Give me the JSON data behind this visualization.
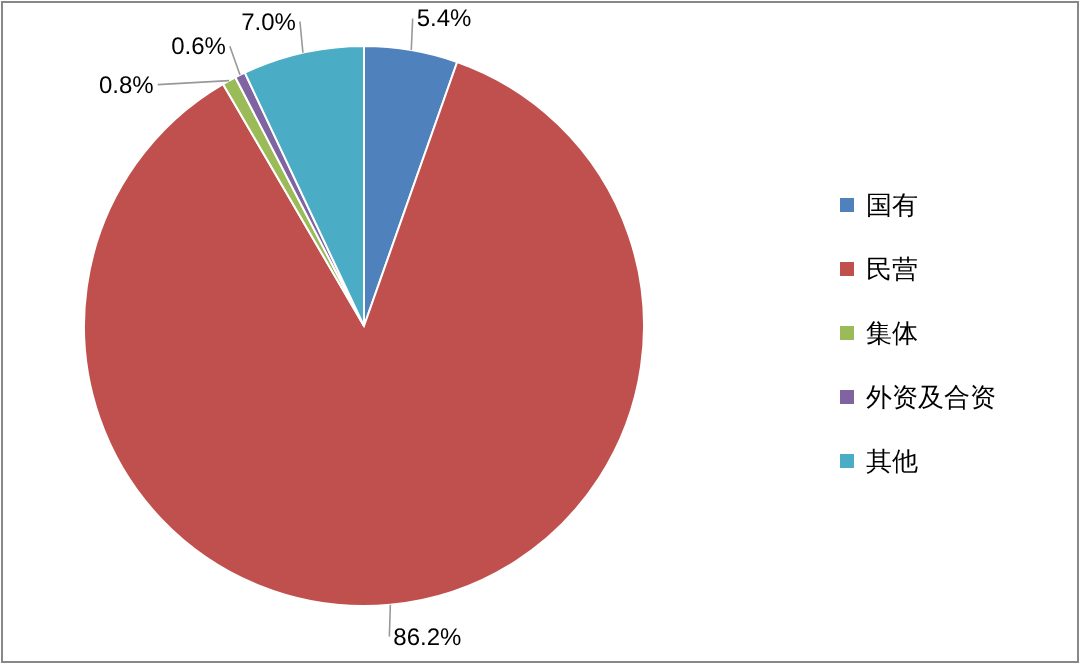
{
  "chart_data": {
    "type": "pie",
    "categories": [
      "国有",
      "民营",
      "集体",
      "外资及合资",
      "其他"
    ],
    "values": [
      5.4,
      86.2,
      0.8,
      0.6,
      7.0
    ],
    "colors": [
      "#4f81bd",
      "#c0504d",
      "#9bbb59",
      "#8064a2",
      "#4bacc6"
    ],
    "value_labels": [
      "5.4%",
      "86.2%",
      "0.8%",
      "0.6%",
      "7.0%"
    ],
    "legend": "right"
  }
}
